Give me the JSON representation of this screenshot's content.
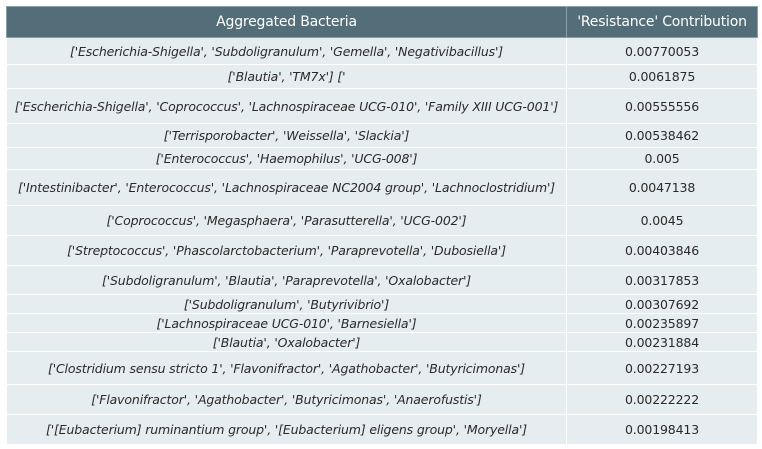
{
  "table": {
    "headers": [
      "Aggregated Bacteria",
      "'Resistance' Contribution"
    ],
    "rows": [
      {
        "bacteria": "['Escherichia-Shigella', 'Subdoligranulum', 'Gemella', 'Negativibacillus']",
        "value": "0.00770053"
      },
      {
        "bacteria": "['Blautia', 'TM7x'] ['",
        "value": "0.0061875"
      },
      {
        "bacteria": "['Escherichia-Shigella', 'Coprococcus', 'Lachnospiraceae UCG-010', 'Family XIII UCG-001']",
        "value": "0.00555556"
      },
      {
        "bacteria": "['Terrisporobacter', 'Weissella', 'Slackia']",
        "value": "0.00538462"
      },
      {
        "bacteria": "['Enterococcus', 'Haemophilus', 'UCG-008']",
        "value": "0.005"
      },
      {
        "bacteria": "['Intestinibacter', 'Enterococcus', 'Lachnospiraceae NC2004 group', 'Lachnoclostridium']",
        "value": "0.0047138"
      },
      {
        "bacteria": "['Coprococcus', 'Megasphaera', 'Parasutterella', 'UCG-002']",
        "value": "0.0045"
      },
      {
        "bacteria": "['Streptococcus', 'Phascolarctobacterium', 'Paraprevotella', 'Dubosiella']",
        "value": "0.00403846"
      },
      {
        "bacteria": "['Subdoligranulum', 'Blautia', 'Paraprevotella', 'Oxalobacter']",
        "value": "0.00317853"
      },
      {
        "bacteria": "['Subdoligranulum', 'Butyrivibrio']",
        "value": "0.00307692"
      },
      {
        "bacteria": "['Lachnospiraceae UCG-010', 'Barnesiella']",
        "value": "0.00235897"
      },
      {
        "bacteria": "['Blautia', 'Oxalobacter']",
        "value": "0.00231884"
      },
      {
        "bacteria": "['Clostridium sensu stricto 1', 'Flavonifractor', 'Agathobacter', 'Butyricimonas']",
        "value": "0.00227193"
      },
      {
        "bacteria": "['Flavonifractor', 'Agathobacter', 'Butyricimonas', 'Anaerofustis']",
        "value": "0.00222222"
      },
      {
        "bacteria": "['[Eubacterium] ruminantium group', '[Eubacterium] eligens group', 'Moryella']",
        "value": "0.00198413"
      }
    ]
  }
}
